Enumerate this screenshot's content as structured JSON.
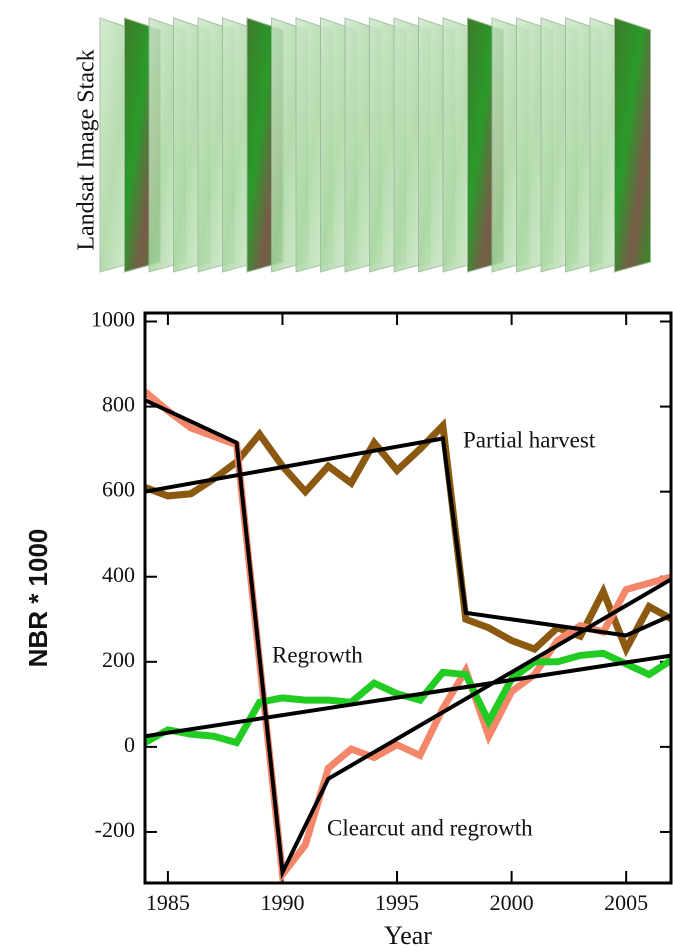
{
  "stack_label": "Landsat Image Stack",
  "chart_data": {
    "type": "line",
    "xlabel": "Year",
    "ylabel": "NBR * 1000",
    "xlim": [
      1984,
      2007
    ],
    "ylim": [
      -320,
      1020
    ],
    "xticks": [
      1985,
      1990,
      1995,
      2000,
      2005
    ],
    "yticks": [
      -200,
      0,
      200,
      400,
      600,
      800,
      1000
    ],
    "annotations": [
      "Partial harvest",
      "Regrowth",
      "Clearcut and regrowth"
    ],
    "series": [
      {
        "color": "#8b5a10",
        "x": [
          1984,
          1985,
          1986,
          1987,
          1988,
          1989,
          1990,
          1991,
          1992,
          1993,
          1994,
          1995,
          1996,
          1997,
          1998,
          1999,
          2000,
          2001,
          2002,
          2003,
          2004,
          2005,
          2006,
          2007
        ],
        "values": [
          610,
          590,
          595,
          630,
          670,
          735,
          660,
          600,
          660,
          620,
          715,
          650,
          700,
          755,
          300,
          280,
          250,
          230,
          280,
          260,
          365,
          230,
          330,
          300
        ]
      },
      {
        "color": "#f4876a",
        "x": [
          1984,
          1985,
          1986,
          1987,
          1988,
          1989,
          1990,
          1991,
          1992,
          1993,
          1994,
          1995,
          1996,
          1997,
          1998,
          1999,
          2000,
          2001,
          2002,
          2003,
          2004,
          2005,
          2006,
          2007
        ],
        "values": [
          835,
          790,
          750,
          730,
          710,
          200,
          -300,
          -230,
          -50,
          -5,
          -25,
          5,
          -20,
          90,
          180,
          25,
          130,
          170,
          250,
          285,
          270,
          370,
          385,
          400
        ]
      },
      {
        "color": "#22cc22",
        "x": [
          1984,
          1985,
          1986,
          1987,
          1988,
          1989,
          1990,
          1991,
          1992,
          1993,
          1994,
          1995,
          1996,
          1997,
          1998,
          1999,
          2000,
          2001,
          2002,
          2003,
          2004,
          2005,
          2006,
          2007
        ],
        "values": [
          10,
          40,
          30,
          25,
          10,
          105,
          115,
          110,
          110,
          105,
          150,
          125,
          110,
          175,
          170,
          60,
          160,
          200,
          200,
          215,
          220,
          195,
          170,
          205
        ]
      },
      {
        "color": "#000000",
        "x": [
          1984,
          1997,
          1998,
          2005,
          2007
        ],
        "values": [
          600,
          725,
          315,
          262,
          310
        ]
      },
      {
        "color": "#000000",
        "x": [
          1984,
          1988,
          1990,
          1992,
          2007
        ],
        "values": [
          815,
          715,
          -295,
          -75,
          395
        ]
      },
      {
        "color": "#000000",
        "x": [
          1984,
          2007
        ],
        "values": [
          25,
          215
        ]
      }
    ]
  }
}
